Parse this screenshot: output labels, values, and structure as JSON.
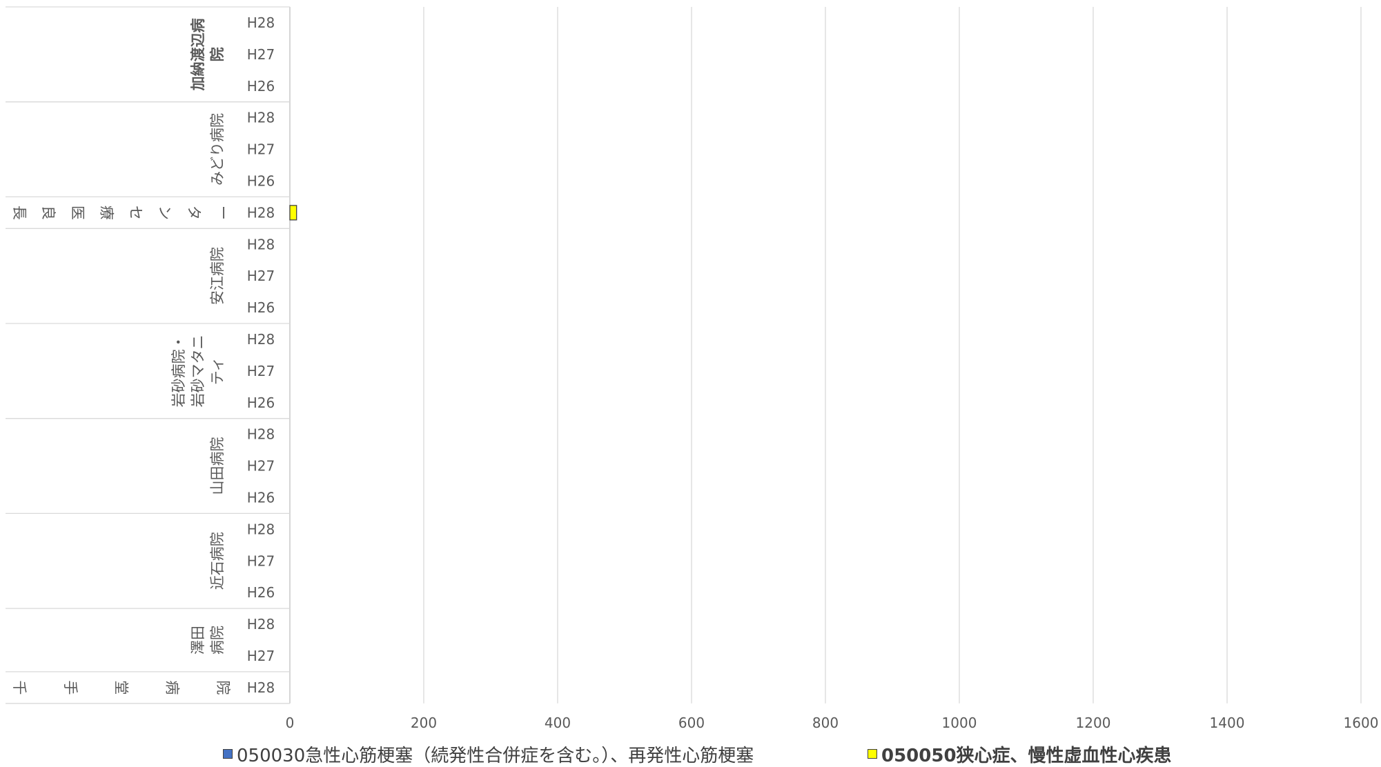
{
  "chart_data": {
    "type": "bar",
    "orientation": "horizontal",
    "groups": [
      {
        "name": "加納渡辺病院",
        "years": [
          "H28",
          "H27",
          "H26"
        ]
      },
      {
        "name": "みどり病院",
        "years": [
          "H28",
          "H27",
          "H26"
        ]
      },
      {
        "name": "長良医療センター",
        "years": [
          "H28"
        ]
      },
      {
        "name": "安江病院",
        "years": [
          "H28",
          "H27",
          "H26"
        ]
      },
      {
        "name": "岩砂病院・岩砂マタニティ",
        "years": [
          "H28",
          "H27",
          "H26"
        ]
      },
      {
        "name": "山田病院",
        "years": [
          "H28",
          "H27",
          "H26"
        ]
      },
      {
        "name": "近石病院",
        "years": [
          "H28",
          "H27",
          "H26"
        ]
      },
      {
        "name": "澤田病院",
        "years": [
          "H28",
          "H27"
        ]
      },
      {
        "name": "千手堂病院",
        "years": [
          "H28"
        ]
      }
    ],
    "series": [
      {
        "name": "050030急性心筋梗塞（続発性合併症を含む。）、再発性心筋梗塞",
        "color": "#4472c4",
        "values": [
          0,
          0,
          0,
          0,
          0,
          0,
          0,
          0,
          0,
          0,
          0,
          0,
          0,
          0,
          0,
          0,
          0,
          0,
          0,
          0,
          0,
          0
        ]
      },
      {
        "name": "050050狭心症、慢性虚血性心疾患",
        "color": "#ffff00",
        "values": [
          0,
          0,
          0,
          0,
          0,
          0,
          10,
          0,
          0,
          0,
          0,
          0,
          0,
          0,
          0,
          0,
          0,
          0,
          0,
          0,
          0,
          0
        ]
      }
    ],
    "xlim": [
      0,
      1600
    ],
    "xticks": [
      "0",
      "200",
      "400",
      "600",
      "800",
      "1000",
      "1200",
      "1400",
      "1600"
    ],
    "grid": true,
    "legend_position": "bottom"
  }
}
